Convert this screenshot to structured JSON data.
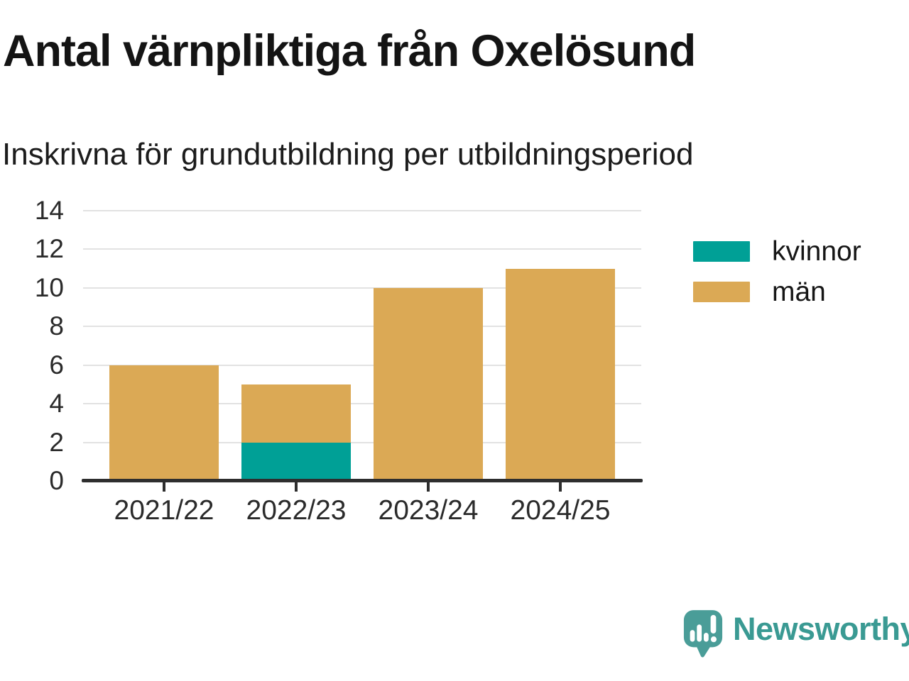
{
  "chart_data": {
    "type": "bar",
    "stacked": true,
    "title": "Antal värnpliktiga från Oxelösund",
    "subtitle": "Inskrivna för grundutbildning per utbildningsperiod",
    "categories": [
      "2021/22",
      "2022/23",
      "2023/24",
      "2024/25"
    ],
    "series": [
      {
        "name": "kvinnor",
        "color": "#00a096",
        "values": [
          0,
          2,
          0,
          0
        ]
      },
      {
        "name": "män",
        "color": "#dba955",
        "values": [
          6,
          3,
          10,
          11
        ]
      }
    ],
    "totals": [
      6,
      5,
      10,
      11
    ],
    "xlabel": "",
    "ylabel": "",
    "ylim": [
      0,
      14
    ],
    "yticks": [
      0,
      2,
      4,
      6,
      8,
      10,
      12,
      14
    ],
    "grid": true,
    "grid_color": "#e2e2e2",
    "axis_color": "#2e2e2e",
    "legend_position": "right"
  },
  "footer": {
    "brand": "Newsworthy",
    "brand_color": "#3a9a93",
    "icon_color": "#4a9d98"
  }
}
